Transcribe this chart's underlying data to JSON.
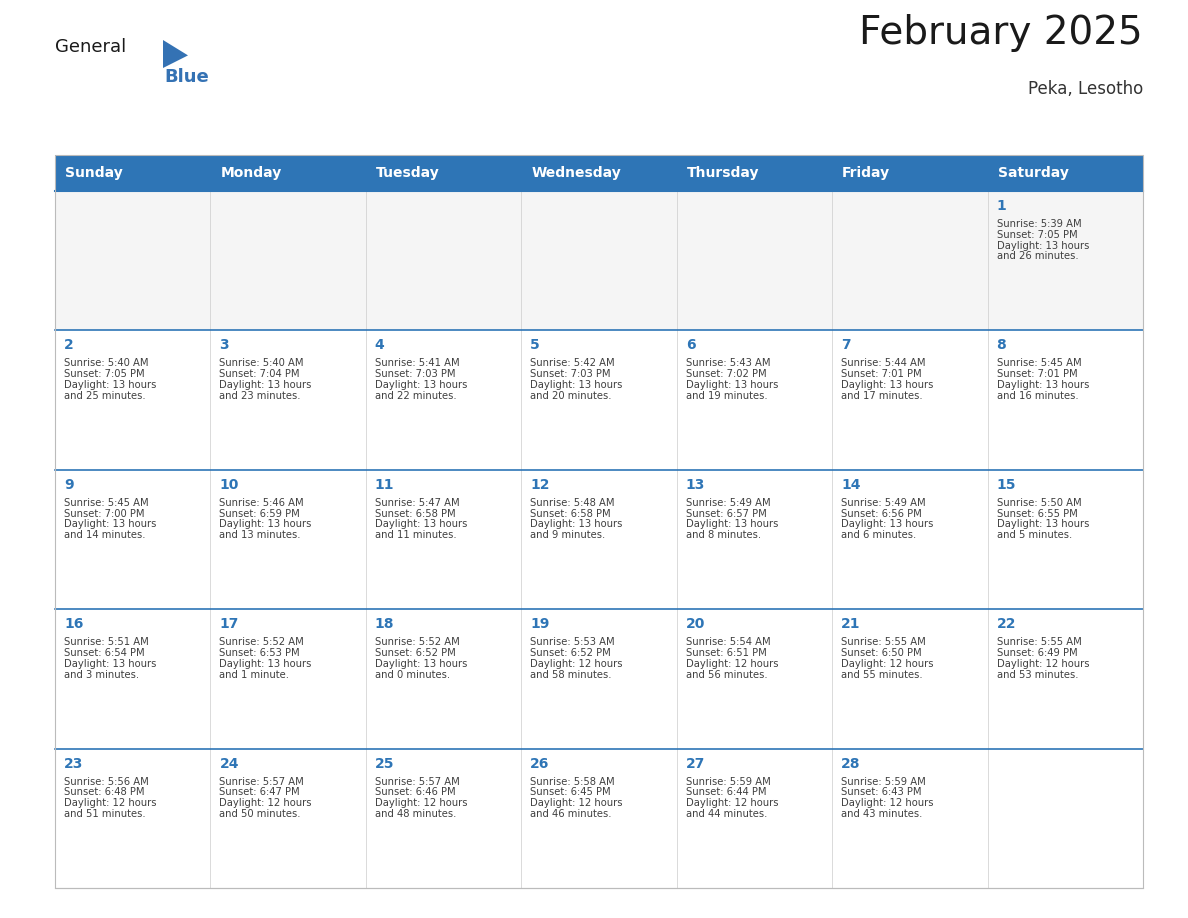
{
  "title": "February 2025",
  "subtitle": "Peka, Lesotho",
  "days_of_week": [
    "Sunday",
    "Monday",
    "Tuesday",
    "Wednesday",
    "Thursday",
    "Friday",
    "Saturday"
  ],
  "header_bg_color": "#2E75B6",
  "header_text_color": "#FFFFFF",
  "day_number_color": "#2E75B6",
  "text_color": "#404040",
  "border_color": "#BBBBBB",
  "row_line_color": "#2E75B6",
  "title_color": "#1A1A1A",
  "subtitle_color": "#333333",
  "logo_general_color": "#1A1A1A",
  "logo_blue_color": "#3472B4",
  "first_row_bg": "#F5F5F5",
  "calendar_data": [
    [
      null,
      null,
      null,
      null,
      null,
      null,
      {
        "day": 1,
        "sunrise": "5:39 AM",
        "sunset": "7:05 PM",
        "daylight": "13 hours and 26 minutes."
      }
    ],
    [
      {
        "day": 2,
        "sunrise": "5:40 AM",
        "sunset": "7:05 PM",
        "daylight": "13 hours and 25 minutes."
      },
      {
        "day": 3,
        "sunrise": "5:40 AM",
        "sunset": "7:04 PM",
        "daylight": "13 hours and 23 minutes."
      },
      {
        "day": 4,
        "sunrise": "5:41 AM",
        "sunset": "7:03 PM",
        "daylight": "13 hours and 22 minutes."
      },
      {
        "day": 5,
        "sunrise": "5:42 AM",
        "sunset": "7:03 PM",
        "daylight": "13 hours and 20 minutes."
      },
      {
        "day": 6,
        "sunrise": "5:43 AM",
        "sunset": "7:02 PM",
        "daylight": "13 hours and 19 minutes."
      },
      {
        "day": 7,
        "sunrise": "5:44 AM",
        "sunset": "7:01 PM",
        "daylight": "13 hours and 17 minutes."
      },
      {
        "day": 8,
        "sunrise": "5:45 AM",
        "sunset": "7:01 PM",
        "daylight": "13 hours and 16 minutes."
      }
    ],
    [
      {
        "day": 9,
        "sunrise": "5:45 AM",
        "sunset": "7:00 PM",
        "daylight": "13 hours and 14 minutes."
      },
      {
        "day": 10,
        "sunrise": "5:46 AM",
        "sunset": "6:59 PM",
        "daylight": "13 hours and 13 minutes."
      },
      {
        "day": 11,
        "sunrise": "5:47 AM",
        "sunset": "6:58 PM",
        "daylight": "13 hours and 11 minutes."
      },
      {
        "day": 12,
        "sunrise": "5:48 AM",
        "sunset": "6:58 PM",
        "daylight": "13 hours and 9 minutes."
      },
      {
        "day": 13,
        "sunrise": "5:49 AM",
        "sunset": "6:57 PM",
        "daylight": "13 hours and 8 minutes."
      },
      {
        "day": 14,
        "sunrise": "5:49 AM",
        "sunset": "6:56 PM",
        "daylight": "13 hours and 6 minutes."
      },
      {
        "day": 15,
        "sunrise": "5:50 AM",
        "sunset": "6:55 PM",
        "daylight": "13 hours and 5 minutes."
      }
    ],
    [
      {
        "day": 16,
        "sunrise": "5:51 AM",
        "sunset": "6:54 PM",
        "daylight": "13 hours and 3 minutes."
      },
      {
        "day": 17,
        "sunrise": "5:52 AM",
        "sunset": "6:53 PM",
        "daylight": "13 hours and 1 minute."
      },
      {
        "day": 18,
        "sunrise": "5:52 AM",
        "sunset": "6:52 PM",
        "daylight": "13 hours and 0 minutes."
      },
      {
        "day": 19,
        "sunrise": "5:53 AM",
        "sunset": "6:52 PM",
        "daylight": "12 hours and 58 minutes."
      },
      {
        "day": 20,
        "sunrise": "5:54 AM",
        "sunset": "6:51 PM",
        "daylight": "12 hours and 56 minutes."
      },
      {
        "day": 21,
        "sunrise": "5:55 AM",
        "sunset": "6:50 PM",
        "daylight": "12 hours and 55 minutes."
      },
      {
        "day": 22,
        "sunrise": "5:55 AM",
        "sunset": "6:49 PM",
        "daylight": "12 hours and 53 minutes."
      }
    ],
    [
      {
        "day": 23,
        "sunrise": "5:56 AM",
        "sunset": "6:48 PM",
        "daylight": "12 hours and 51 minutes."
      },
      {
        "day": 24,
        "sunrise": "5:57 AM",
        "sunset": "6:47 PM",
        "daylight": "12 hours and 50 minutes."
      },
      {
        "day": 25,
        "sunrise": "5:57 AM",
        "sunset": "6:46 PM",
        "daylight": "12 hours and 48 minutes."
      },
      {
        "day": 26,
        "sunrise": "5:58 AM",
        "sunset": "6:45 PM",
        "daylight": "12 hours and 46 minutes."
      },
      {
        "day": 27,
        "sunrise": "5:59 AM",
        "sunset": "6:44 PM",
        "daylight": "12 hours and 44 minutes."
      },
      {
        "day": 28,
        "sunrise": "5:59 AM",
        "sunset": "6:43 PM",
        "daylight": "12 hours and 43 minutes."
      },
      null
    ]
  ]
}
